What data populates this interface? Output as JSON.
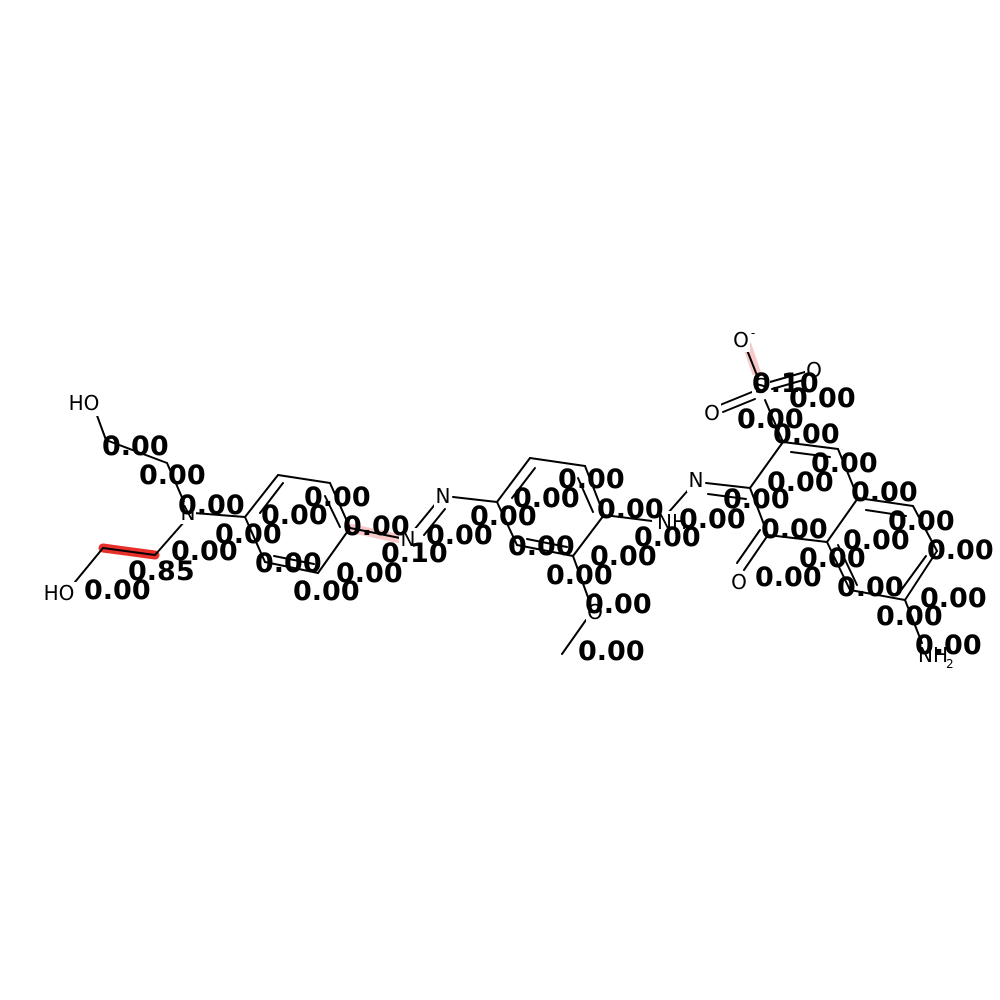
{
  "colors": {
    "background": "#ffffff",
    "bond": "#000000",
    "highlight_strong": "#e8302a",
    "highlight_weak": "#f7c9c9"
  },
  "atom_labels": {
    "ho_top": "HO",
    "ho_bottom": "HO",
    "n_amine": "N",
    "n_azo_a": "N",
    "n_azo_b": "N",
    "nh_hydrazone": "NH",
    "n_hydrazone": "N",
    "o_methoxy": "O",
    "o_minus": "O",
    "o_minus_charge": "-",
    "s_sulfo": "S",
    "o_sulfo_right": "O",
    "o_sulfo_left": "O",
    "o_carbonyl": "O",
    "nh2": "NH",
    "nh2_sub": "2"
  },
  "scores": {
    "s01": "0.00",
    "s02": "0.00",
    "s03": "0.00",
    "s04": "0.00",
    "s05": "0.00",
    "s06": "0.00",
    "s07": "0.85",
    "s08": "0.00",
    "s09": "0.00",
    "s10": "0.00",
    "s11": "0.00",
    "s12": "0.00",
    "s13": "0.00",
    "s14": "0.10",
    "s15": "0.00",
    "s16": "0.00",
    "s17": "0.00",
    "s18": "0.00",
    "s19": "0.00",
    "s20": "0.00",
    "s21": "0.00",
    "s22": "0.00",
    "s23": "0.00",
    "s24": "0.00",
    "s25": "0.00",
    "s26": "0.00",
    "s27": "0.10",
    "s28": "0.00",
    "s29": "0.00",
    "s30": "0.00",
    "s31": "0.00",
    "s32": "0.00",
    "s33": "0.00",
    "s34": "0.00",
    "s35": "0.00",
    "s36": "0.00",
    "s37": "0.00",
    "s38": "0.00",
    "s39": "0.00",
    "s40": "0.00",
    "s41": "0.00",
    "s42": "0.00",
    "s43": "0.00"
  }
}
